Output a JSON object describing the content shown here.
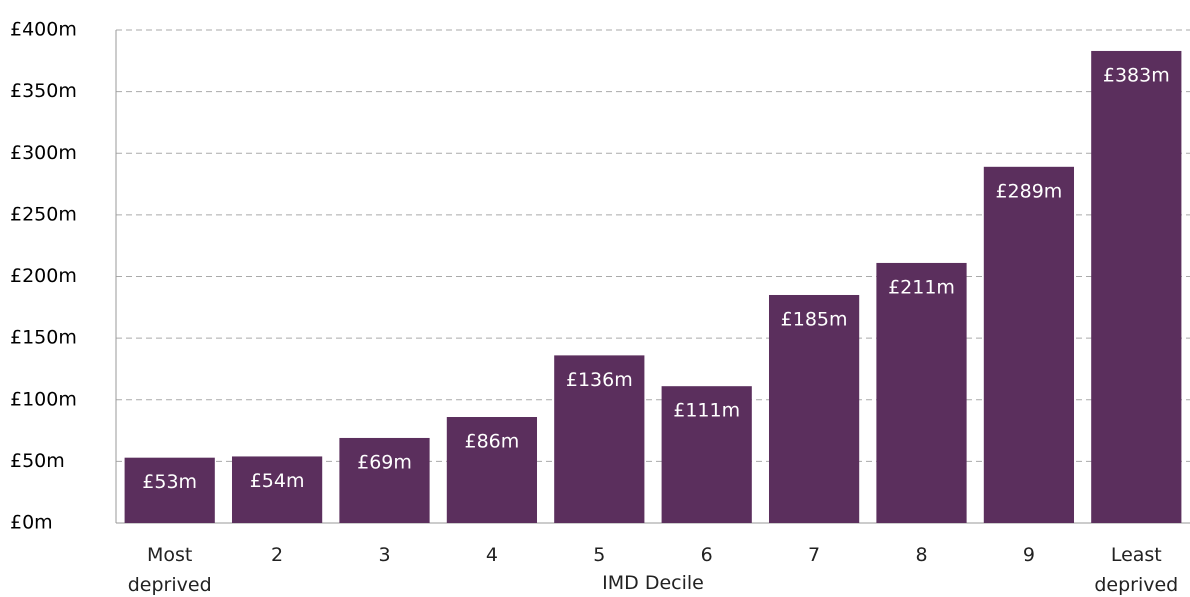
{
  "chart_data": {
    "type": "bar",
    "x_label": "IMD Decile",
    "categories": [
      "Most deprived",
      "2",
      "3",
      "4",
      "5",
      "6",
      "7",
      "8",
      "9",
      "Least deprived"
    ],
    "values": [
      53,
      54,
      69,
      86,
      136,
      111,
      185,
      211,
      289,
      383
    ],
    "value_labels": [
      "£53m",
      "£54m",
      "£69m",
      "£86m",
      "£136m",
      "£111m",
      "£185m",
      "£211m",
      "£289m",
      "£383m"
    ],
    "color": "#5b2f5d",
    "ylim": [
      0,
      400
    ],
    "yticks": [
      {
        "value": 0,
        "label": "£0m"
      },
      {
        "value": 50,
        "label": "£50m"
      },
      {
        "value": 100,
        "label": "£100m"
      },
      {
        "value": 150,
        "label": "£150m"
      },
      {
        "value": 200,
        "label": "£200m"
      },
      {
        "value": 250,
        "label": "£250m"
      },
      {
        "value": 300,
        "label": "£300m"
      },
      {
        "value": 350,
        "label": "£350m"
      },
      {
        "value": 400,
        "label": "£400m"
      }
    ],
    "grid": true
  }
}
